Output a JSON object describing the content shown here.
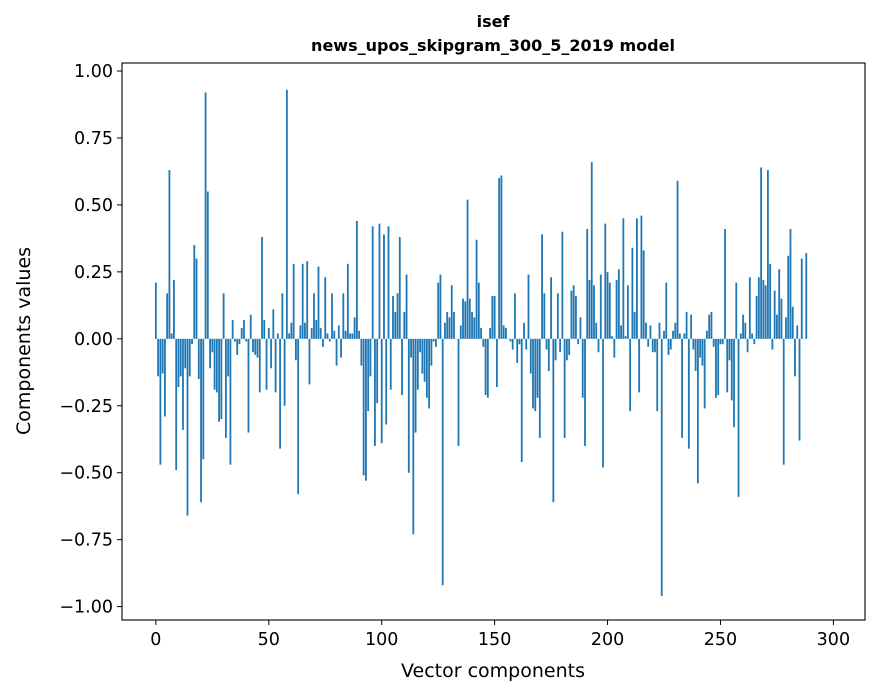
{
  "chart_data": {
    "type": "bar",
    "title": "isef",
    "subtitle": "news_upos_skipgram_300_5_2019 model",
    "xlabel": "Vector components",
    "ylabel": "Components values",
    "xlim": [
      -15,
      314
    ],
    "ylim": [
      -1.05,
      1.03
    ],
    "xticks": [
      0,
      50,
      100,
      150,
      200,
      250,
      300
    ],
    "xtick_labels": [
      "0",
      "50",
      "100",
      "150",
      "200",
      "250",
      "300"
    ],
    "yticks": [
      1.0,
      0.75,
      0.5,
      0.25,
      0.0,
      -0.25,
      -0.5,
      -0.75,
      -1.0
    ],
    "ytick_labels": [
      "1.00",
      "0.75",
      "0.50",
      "0.25",
      "0.00",
      "−0.25",
      "−0.50",
      "−0.75",
      "−1.00"
    ],
    "bar_color": "#1f77b4",
    "values": [
      0.21,
      -0.14,
      -0.47,
      -0.13,
      -0.29,
      0.17,
      0.63,
      0.02,
      0.22,
      -0.49,
      -0.18,
      -0.14,
      -0.34,
      -0.11,
      -0.66,
      -0.14,
      -0.02,
      0.35,
      0.3,
      -0.15,
      -0.61,
      -0.45,
      0.92,
      0.55,
      -0.11,
      -0.05,
      -0.19,
      -0.2,
      -0.31,
      -0.3,
      0.17,
      -0.37,
      -0.14,
      -0.47,
      0.07,
      -0.01,
      -0.06,
      -0.02,
      0.04,
      0.07,
      -0.01,
      -0.35,
      0.09,
      -0.05,
      -0.06,
      -0.07,
      -0.2,
      0.38,
      0.07,
      -0.19,
      0.04,
      -0.11,
      0.11,
      -0.2,
      0.02,
      -0.41,
      0.17,
      -0.25,
      0.93,
      0.02,
      0.06,
      0.28,
      -0.08,
      -0.58,
      0.05,
      0.28,
      0.06,
      0.29,
      -0.17,
      0.04,
      0.17,
      0.07,
      0.27,
      0.04,
      -0.03,
      0.23,
      0.02,
      -0.01,
      0.17,
      0.03,
      -0.1,
      0.05,
      -0.07,
      0.17,
      0.03,
      0.28,
      0.02,
      0.02,
      0.08,
      0.44,
      0.03,
      -0.1,
      -0.51,
      -0.53,
      -0.27,
      -0.14,
      0.42,
      -0.4,
      -0.24,
      0.43,
      -0.39,
      0.39,
      -0.32,
      0.42,
      -0.19,
      0.16,
      0.1,
      0.17,
      0.38,
      -0.21,
      0.1,
      0.24,
      -0.5,
      -0.07,
      -0.73,
      -0.35,
      -0.19,
      -0.05,
      -0.13,
      -0.16,
      -0.22,
      -0.26,
      -0.1,
      -0.01,
      -0.03,
      0.21,
      0.24,
      -0.92,
      0.06,
      0.1,
      0.08,
      0.2,
      0.1,
      0.0,
      -0.4,
      0.05,
      0.15,
      0.14,
      0.52,
      0.15,
      0.1,
      0.08,
      0.37,
      0.21,
      0.04,
      -0.03,
      -0.21,
      -0.22,
      0.04,
      0.16,
      0.16,
      -0.18,
      0.6,
      0.61,
      0.05,
      0.04,
      0.0,
      -0.01,
      -0.04,
      0.17,
      -0.09,
      -0.02,
      -0.46,
      0.06,
      -0.04,
      0.24,
      -0.13,
      -0.26,
      -0.27,
      -0.22,
      -0.37,
      0.39,
      0.17,
      -0.04,
      -0.12,
      0.23,
      -0.61,
      -0.08,
      0.17,
      -0.05,
      0.4,
      -0.37,
      -0.08,
      -0.06,
      0.18,
      0.2,
      0.16,
      -0.02,
      0.08,
      -0.22,
      -0.4,
      0.41,
      0.22,
      0.66,
      0.2,
      0.06,
      -0.05,
      0.24,
      -0.48,
      0.43,
      0.25,
      0.21,
      0.01,
      -0.07,
      0.22,
      0.26,
      0.05,
      0.45,
      0.01,
      0.2,
      -0.27,
      0.34,
      0.1,
      0.45,
      -0.2,
      0.46,
      0.33,
      0.06,
      -0.03,
      0.05,
      -0.05,
      -0.05,
      -0.27,
      0.06,
      -0.96,
      0.03,
      0.21,
      -0.06,
      -0.04,
      0.03,
      0.06,
      0.59,
      0.02,
      -0.37,
      0.02,
      0.1,
      -0.41,
      0.09,
      -0.04,
      -0.12,
      -0.54,
      -0.07,
      -0.1,
      -0.26,
      0.03,
      0.09,
      0.1,
      -0.03,
      -0.22,
      -0.21,
      -0.02,
      -0.02,
      0.41,
      -0.2,
      -0.08,
      -0.23,
      -0.33,
      0.21,
      -0.59,
      0.02,
      0.09,
      0.06,
      -0.05,
      0.23,
      0.02,
      -0.02,
      0.16,
      0.23,
      0.64,
      0.22,
      0.2,
      0.63,
      0.28,
      -0.04,
      0.18,
      0.09,
      0.26,
      0.15,
      -0.47,
      0.08,
      0.31,
      0.41,
      0.12,
      -0.14,
      0.05,
      -0.38,
      0.3,
      0.0,
      0.32
    ]
  }
}
